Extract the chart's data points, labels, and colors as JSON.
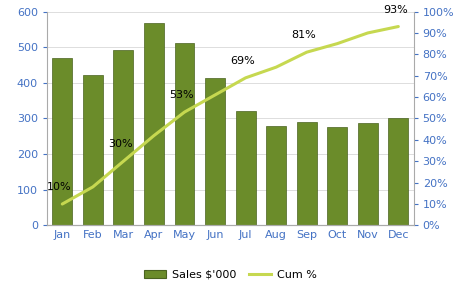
{
  "months": [
    "Jan",
    "Feb",
    "Mar",
    "Apr",
    "May",
    "Jun",
    "Jul",
    "Aug",
    "Sep",
    "Oct",
    "Nov",
    "Dec"
  ],
  "sales": [
    470,
    422,
    492,
    568,
    511,
    414,
    322,
    280,
    290,
    276,
    287,
    302
  ],
  "cum_pct": [
    10,
    18,
    30,
    42,
    53,
    61,
    69,
    74,
    81,
    85,
    90,
    93
  ],
  "bar_color": "#6B8C2A",
  "line_color": "#C6D850",
  "bar_edge_color": "#4A6320",
  "label_months_idx": [
    0,
    2,
    4,
    6,
    8,
    11
  ],
  "label_texts": [
    "10%",
    "30%",
    "53%",
    "69%",
    "81%",
    "93%"
  ],
  "left_ylim": [
    0,
    600
  ],
  "right_ylim": [
    0,
    100
  ],
  "left_yticks": [
    0,
    100,
    200,
    300,
    400,
    500,
    600
  ],
  "right_yticks": [
    0,
    10,
    20,
    30,
    40,
    50,
    60,
    70,
    80,
    90,
    100
  ],
  "legend_bar_label": "Sales $'000",
  "legend_line_label": "Cum %",
  "background_color": "#FFFFFF",
  "tick_color": "#4472C4",
  "label_fontsize": 8.0,
  "tick_fontsize": 8.0,
  "line_width": 2.2
}
